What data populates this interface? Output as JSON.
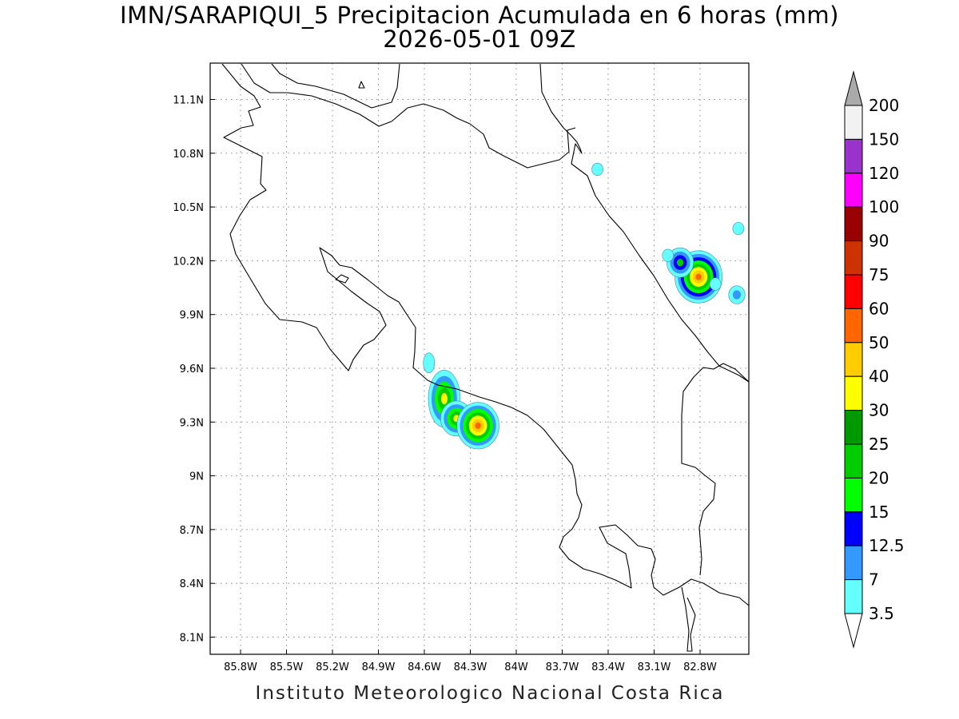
{
  "title": "IMN/SARAPIQUI_5 Precipitacion Acumulada en 6 horas (mm)",
  "subtitle": "2026-05-01 09Z",
  "credit": "Instituto Meteorologico Nacional Costa Rica",
  "x_ticks": [
    "85.8W",
    "85.5W",
    "85.2W",
    "84.9W",
    "84.6W",
    "84.3W",
    "84W",
    "83.7W",
    "83.4W",
    "83.1W",
    "82.8W"
  ],
  "y_ticks": [
    "11.1N",
    "10.8N",
    "10.5N",
    "10.2N",
    "9.9N",
    "9.6N",
    "9.3N",
    "9N",
    "8.7N",
    "8.4N",
    "8.1N"
  ],
  "colorbar": {
    "labels": [
      "200",
      "150",
      "120",
      "100",
      "90",
      "75",
      "60",
      "50",
      "40",
      "30",
      "25",
      "20",
      "15",
      "12.5",
      "7",
      "3.5"
    ],
    "colors": [
      "#f2f2f2",
      "#9933cc",
      "#ff00ff",
      "#990000",
      "#cc3300",
      "#ff0000",
      "#ff6600",
      "#ffcc00",
      "#ffff00",
      "#009900",
      "#00cc00",
      "#00ff00",
      "#0000ff",
      "#3399ff",
      "#66ffff"
    ],
    "max_color": "#aaaaaa",
    "min_color": "#ffffff"
  },
  "precip_cells": [
    {
      "lon": -84.47,
      "lat": 9.43,
      "levels": [
        3.5,
        7,
        15,
        20,
        30
      ]
    },
    {
      "lon": -84.39,
      "lat": 9.32,
      "levels": [
        3.5,
        7,
        15,
        20,
        30
      ]
    },
    {
      "lon": -84.25,
      "lat": 9.28,
      "levels": [
        3.5,
        7,
        15,
        20,
        30,
        40,
        50
      ]
    },
    {
      "lon": -82.81,
      "lat": 10.11,
      "levels": [
        3.5,
        7,
        12.5,
        15,
        20,
        30,
        40,
        50
      ]
    },
    {
      "lon": -82.93,
      "lat": 10.19,
      "levels": [
        3.5,
        7,
        12.5,
        20
      ]
    },
    {
      "lon": -83.01,
      "lat": 10.23,
      "levels": [
        3.5
      ]
    },
    {
      "lon": -82.56,
      "lat": 10.01,
      "levels": [
        3.5,
        7
      ]
    },
    {
      "lon": -82.55,
      "lat": 10.38,
      "levels": [
        3.5
      ]
    },
    {
      "lon": -83.47,
      "lat": 10.71,
      "levels": [
        3.5
      ]
    },
    {
      "lon": -82.7,
      "lat": 10.07,
      "levels": [
        3.5
      ]
    },
    {
      "lon": -84.57,
      "lat": 9.63,
      "levels": [
        3.5
      ]
    }
  ]
}
